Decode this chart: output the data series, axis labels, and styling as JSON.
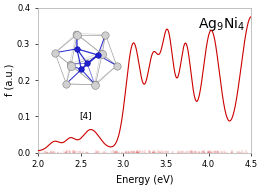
{
  "xlabel": "Energy (eV)",
  "ylabel": "f (a.u.)",
  "xlim": [
    2.0,
    4.5
  ],
  "ylim": [
    0.0,
    0.4
  ],
  "xticks": [
    2.0,
    2.5,
    3.0,
    3.5,
    4.0,
    4.5
  ],
  "yticks": [
    0.0,
    0.1,
    0.2,
    0.3,
    0.4
  ],
  "line_color": "#cc0000",
  "bg_color": "#ffffff",
  "inset_label": "[4]",
  "title_fontsize": 10,
  "axis_fontsize": 7,
  "tick_fontsize": 6
}
